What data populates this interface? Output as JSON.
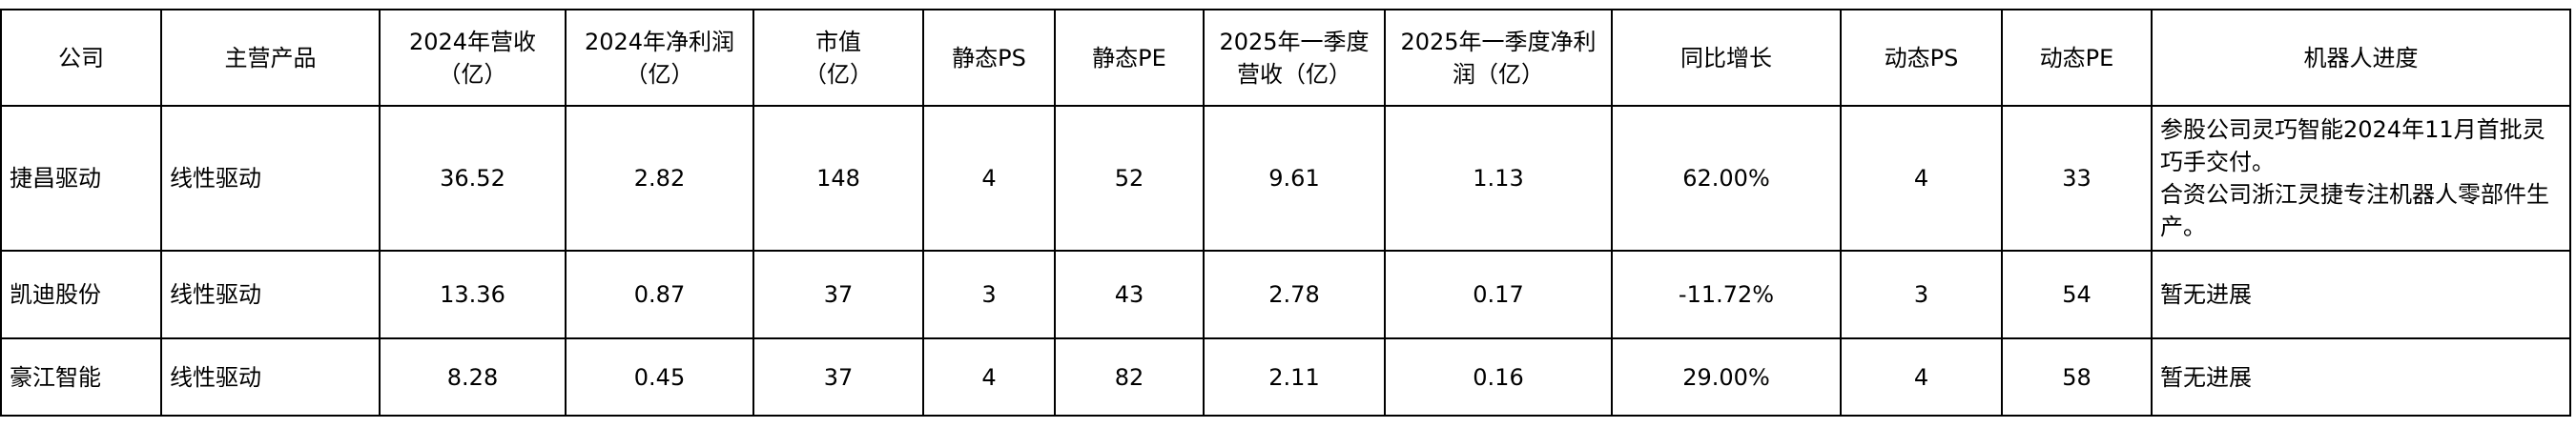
{
  "table": {
    "header": [
      "公司",
      "主营产品",
      [
        "2024年营收",
        "（亿）"
      ],
      [
        "2024年净利润",
        "（亿）"
      ],
      [
        "市值",
        "（亿）"
      ],
      "静态PS",
      "静态PE",
      [
        "2025年一季度",
        "营收（亿）"
      ],
      [
        "2025年一季度净利",
        "润（亿）"
      ],
      "同比增长",
      "动态PS",
      "动态PE",
      "机器人进度"
    ],
    "rows": [
      [
        "捷昌驱动",
        "线性驱动",
        "36.52",
        "2.82",
        "148",
        "4",
        "52",
        "9.61",
        "1.13",
        "62.00%",
        "4",
        "33",
        [
          "参股公司灵巧智能2024年11月首批灵巧手交付。",
          "合资公司浙江灵捷专注机器人零部件生产。"
        ]
      ],
      [
        "凯迪股份",
        "线性驱动",
        "13.36",
        "0.87",
        "37",
        "3",
        "43",
        "2.78",
        "0.17",
        "-11.72%",
        "3",
        "54",
        "暂无进展"
      ],
      [
        "豪江智能",
        "线性驱动",
        "8.28",
        "0.45",
        "37",
        "4",
        "82",
        "2.11",
        "0.16",
        "29.00%",
        "4",
        "58",
        "暂无进展"
      ]
    ]
  }
}
